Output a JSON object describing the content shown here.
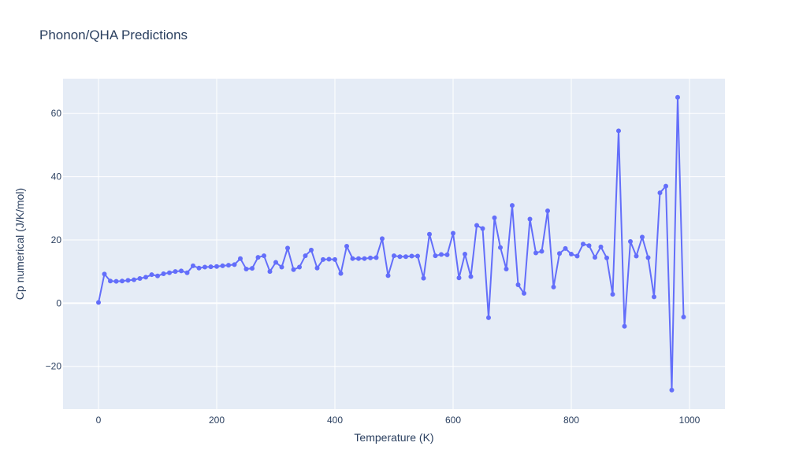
{
  "chart_data": {
    "type": "line",
    "title": "Phonon/QHA Predictions",
    "xlabel": "Temperature (K)",
    "ylabel": "Cp numerical (J/K/mol)",
    "xlim": [
      -60,
      1060
    ],
    "ylim": [
      -33.5,
      71
    ],
    "xticks": [
      0,
      200,
      400,
      600,
      800,
      1000
    ],
    "xtick_labels": [
      "0",
      "200",
      "400",
      "600",
      "800",
      "1000"
    ],
    "yticks": [
      -20,
      0,
      20,
      40,
      60
    ],
    "ytick_labels": [
      "−20",
      "0",
      "20",
      "40",
      "60"
    ],
    "grid": true,
    "colors": {
      "plot_bg": "#e5ecf6",
      "grid": "#ffffff",
      "line": "#636efa",
      "text": "#2a3f5f"
    },
    "series": [
      {
        "mode": "lines+markers",
        "x": [
          0,
          10,
          20,
          30,
          40,
          50,
          60,
          70,
          80,
          90,
          100,
          110,
          120,
          130,
          140,
          150,
          160,
          170,
          180,
          190,
          200,
          210,
          220,
          230,
          240,
          250,
          260,
          270,
          280,
          290,
          300,
          310,
          320,
          330,
          340,
          350,
          360,
          370,
          380,
          390,
          400,
          410,
          420,
          430,
          440,
          450,
          460,
          470,
          480,
          490,
          500,
          510,
          520,
          530,
          540,
          550,
          560,
          570,
          580,
          590,
          600,
          610,
          620,
          630,
          640,
          650,
          660,
          670,
          680,
          690,
          700,
          710,
          720,
          730,
          740,
          750,
          760,
          770,
          780,
          790,
          800,
          810,
          820,
          830,
          840,
          850,
          860,
          870,
          880,
          890,
          900,
          910,
          920,
          930,
          940,
          950,
          960,
          970,
          980,
          990
        ],
        "y": [
          0.2,
          9.2,
          7.0,
          6.9,
          7.0,
          7.2,
          7.4,
          7.8,
          8.2,
          9.0,
          8.6,
          9.3,
          9.6,
          10.0,
          10.2,
          9.6,
          11.8,
          11.1,
          11.4,
          11.5,
          11.6,
          11.8,
          12.0,
          12.2,
          14.1,
          10.8,
          11.0,
          14.5,
          15.0,
          10.0,
          12.9,
          11.4,
          17.4,
          10.6,
          11.4,
          15.0,
          16.8,
          11.1,
          13.8,
          13.9,
          13.8,
          9.4,
          18.0,
          14.1,
          14.1,
          14.1,
          14.3,
          14.4,
          20.4,
          8.7,
          15.0,
          14.7,
          14.7,
          14.9,
          14.9,
          7.9,
          21.8,
          15.0,
          15.4,
          15.3,
          22.1,
          8.0,
          15.5,
          8.4,
          24.6,
          23.6,
          -4.6,
          27.0,
          17.6,
          10.8,
          30.9,
          5.8,
          3.1,
          26.6,
          15.9,
          16.4,
          29.2,
          5.1,
          15.7,
          17.3,
          15.5,
          14.9,
          18.7,
          18.2,
          14.5,
          17.8,
          14.3,
          2.8,
          54.5,
          -7.3,
          19.5,
          14.9,
          20.9,
          14.4,
          2.0,
          34.9,
          37.0,
          -27.5,
          65.1,
          -4.4
        ]
      }
    ]
  }
}
